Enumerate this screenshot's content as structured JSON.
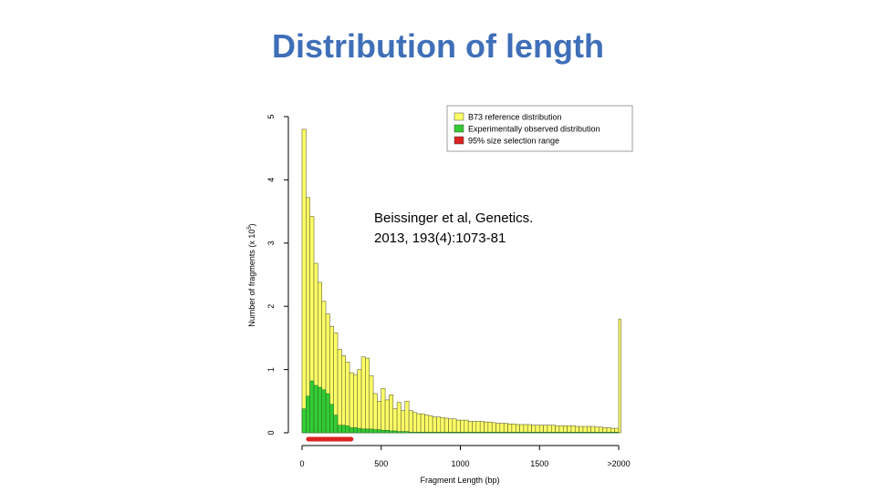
{
  "slide": {
    "title": "Distribution of length"
  },
  "citation": {
    "line1": "Beissinger et al, Genetics.",
    "line2": "2013, 193(4):1073-81"
  },
  "chart_data": {
    "type": "bar",
    "title": "",
    "xlabel": "Fragment Length (bp)",
    "ylabel": "Number of fragments (x 10^5)",
    "ylabel_prefix": "Number of fragments (x 10",
    "ylabel_exp": "5",
    "ylabel_suffix": ")",
    "xlim": [
      0,
      2000
    ],
    "ylim": [
      0,
      5
    ],
    "x_tick_values": [
      0,
      500,
      1000,
      1500,
      2000
    ],
    "x_tick_labels": [
      "0",
      "500",
      "1000",
      "1500",
      ">2000"
    ],
    "y_tick_values": [
      0,
      1,
      2,
      3,
      4,
      5
    ],
    "y_tick_labels": [
      "0",
      "1",
      "2",
      "3",
      "4",
      "5"
    ],
    "bin_width": 25,
    "bin_starts": [
      0,
      25,
      50,
      75,
      100,
      125,
      150,
      175,
      200,
      225,
      250,
      275,
      300,
      325,
      350,
      375,
      400,
      425,
      450,
      475,
      500,
      525,
      550,
      575,
      600,
      625,
      650,
      675,
      700,
      725,
      750,
      775,
      800,
      825,
      850,
      875,
      900,
      925,
      950,
      975,
      1000,
      1025,
      1050,
      1075,
      1100,
      1125,
      1150,
      1175,
      1200,
      1225,
      1250,
      1275,
      1300,
      1325,
      1350,
      1375,
      1400,
      1425,
      1450,
      1475,
      1500,
      1525,
      1550,
      1575,
      1600,
      1625,
      1650,
      1675,
      1700,
      1725,
      1750,
      1775,
      1800,
      1825,
      1850,
      1875,
      1900,
      1925,
      1950,
      1975
    ],
    "overflow_bin": {
      "label": ">2000",
      "start": 2000,
      "value": 1.8
    },
    "series": [
      {
        "name": "B73 reference distribution",
        "color": "#ffff66",
        "values": [
          4.8,
          3.72,
          3.42,
          2.68,
          2.38,
          2.08,
          1.88,
          1.68,
          1.58,
          1.32,
          1.22,
          1.12,
          0.95,
          0.92,
          1.0,
          1.2,
          1.18,
          0.9,
          0.62,
          0.5,
          0.7,
          0.52,
          0.6,
          0.38,
          0.48,
          0.35,
          0.5,
          0.35,
          0.32,
          0.3,
          0.3,
          0.28,
          0.27,
          0.25,
          0.25,
          0.24,
          0.23,
          0.22,
          0.22,
          0.2,
          0.2,
          0.2,
          0.18,
          0.18,
          0.18,
          0.18,
          0.17,
          0.17,
          0.16,
          0.15,
          0.15,
          0.15,
          0.14,
          0.14,
          0.13,
          0.13,
          0.13,
          0.13,
          0.12,
          0.12,
          0.12,
          0.12,
          0.12,
          0.12,
          0.11,
          0.11,
          0.11,
          0.11,
          0.11,
          0.1,
          0.1,
          0.1,
          0.1,
          0.1,
          0.09,
          0.09,
          0.08,
          0.08,
          0.07,
          0.07
        ]
      },
      {
        "name": "Experimentally observed distribution",
        "color": "#33cc33",
        "values": [
          0.38,
          0.58,
          0.82,
          0.75,
          0.72,
          0.68,
          0.62,
          0.45,
          0.28,
          0.12,
          0.12,
          0.11,
          0.08,
          0.08,
          0.07,
          0.06,
          0.06,
          0.06,
          0.05,
          0.05,
          0.04,
          0.04,
          0.03,
          0.03,
          0.02,
          0.02,
          0.02,
          0.01,
          0.01,
          0.01,
          0.01,
          0.01,
          0.01,
          0.01,
          0.01,
          0.01,
          0.01,
          0.01,
          0.01,
          0.01,
          0.01,
          0.01,
          0.01,
          0.01,
          0.01,
          0.01,
          0.01,
          0.01,
          0.01,
          0.01,
          0.01,
          0.01,
          0.01,
          0.01,
          0.01,
          0.01,
          0.01,
          0.01,
          0.01,
          0.01,
          0.01,
          0.01,
          0.01,
          0.01,
          0.01,
          0.01,
          0.01,
          0.01,
          0.01,
          0.01,
          0.01,
          0.01,
          0.01,
          0.01,
          0.01,
          0.01,
          0.01,
          0.01,
          0.01,
          0.01
        ]
      }
    ],
    "selection_range": {
      "name": "95% size selection range",
      "color": "#dd2222",
      "x_start": 40,
      "x_end": 310
    },
    "legend": {
      "position": "top-right",
      "entries": [
        {
          "label": "B73 reference distribution",
          "color": "#ffff66"
        },
        {
          "label": "Experimentally observed distribution",
          "color": "#33cc33"
        },
        {
          "label": "95% size selection range",
          "color": "#dd2222"
        }
      ]
    },
    "grid": false
  }
}
